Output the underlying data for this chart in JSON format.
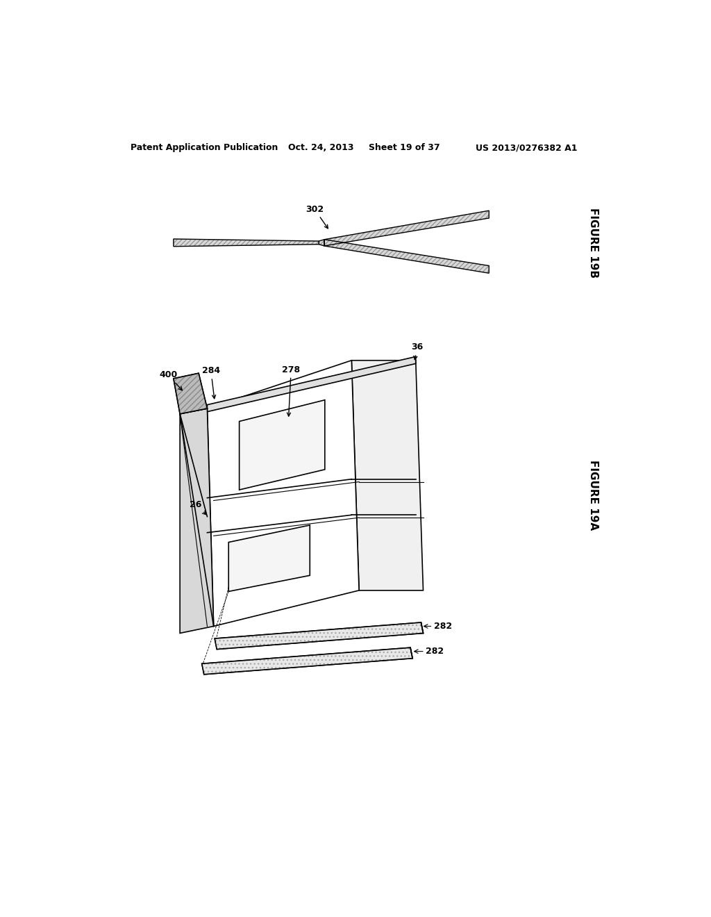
{
  "bg_color": "#ffffff",
  "header_text": "Patent Application Publication",
  "header_date": "Oct. 24, 2013",
  "header_sheet": "Sheet 19 of 37",
  "header_patent": "US 2013/0276382 A1",
  "fig19b_label": "FIGURE 19B",
  "fig19a_label": "FIGURE 19A",
  "label_302": "302",
  "label_400": "400",
  "label_284": "284",
  "label_278": "278",
  "label_36": "36",
  "label_26": "26",
  "label_282a": "282",
  "label_282b": "282",
  "line_color": "#000000"
}
